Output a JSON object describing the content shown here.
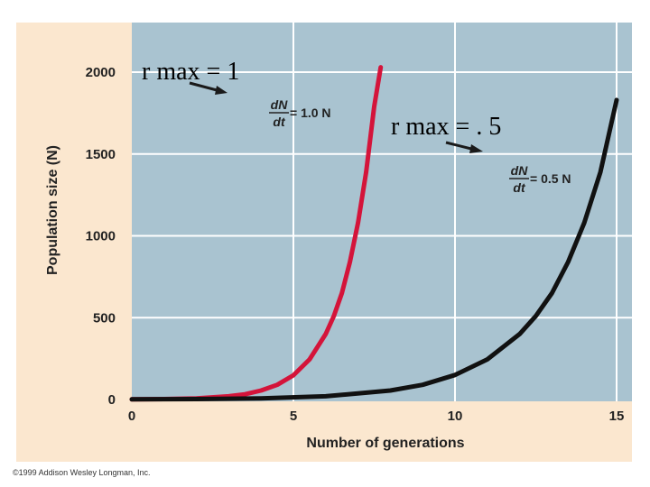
{
  "chart_data": {
    "type": "line",
    "title": "",
    "xlabel": "Number of generations",
    "ylabel": "Population size (N)",
    "xlim": [
      0,
      15
    ],
    "ylim": [
      0,
      2000
    ],
    "xticks": [
      "0",
      "5",
      "10",
      "15"
    ],
    "yticks": [
      "0",
      "500",
      "1000",
      "1500",
      "2000"
    ],
    "grid": true,
    "series": [
      {
        "name": "dN/dt = 1.0 N",
        "color": "#d4143a",
        "x": [
          0,
          1,
          2,
          3,
          3.5,
          4,
          4.5,
          5,
          5.5,
          6,
          6.25,
          6.5,
          6.75,
          7,
          7.25,
          7.5,
          7.7
        ],
        "y": [
          1,
          3,
          7,
          20,
          32,
          55,
          90,
          148,
          245,
          400,
          510,
          650,
          840,
          1080,
          1390,
          1790,
          2030
        ]
      },
      {
        "name": "dN/dt = 0.5 N",
        "color": "#111111",
        "x": [
          0,
          2,
          4,
          6,
          8,
          9,
          10,
          11,
          12,
          12.5,
          13,
          13.5,
          14,
          14.5,
          15
        ],
        "y": [
          1,
          3,
          7,
          20,
          55,
          90,
          150,
          245,
          400,
          510,
          650,
          840,
          1080,
          1390,
          1830
        ]
      }
    ],
    "annotations": {
      "eq1": {
        "num": "dN",
        "den": "dt",
        "rest": "= 1.0 N"
      },
      "eq2": {
        "num": "dN",
        "den": "dt",
        "rest": "= 0.5 N"
      },
      "note1": "r max = 1",
      "note2": "r max = . 5"
    }
  },
  "copyright": "©1999 Addison Wesley Longman, Inc.",
  "colors": {
    "panel": "#fbe7cf",
    "plot": "#a9c3d0",
    "grid": "#ffffff"
  }
}
